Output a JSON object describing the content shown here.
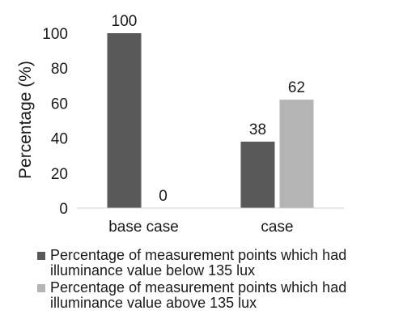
{
  "chart_data": {
    "type": "bar",
    "categories": [
      "base case",
      "case"
    ],
    "series": [
      {
        "name": "Percentage of measurement points which had illuminance value below 135 lux",
        "values": [
          100,
          38
        ],
        "color": "#595959"
      },
      {
        "name": "Percentage of measurement points which had illuminance value above 135 lux",
        "values": [
          0,
          62
        ],
        "color": "#b4b4b4"
      }
    ],
    "title": "",
    "xlabel": "",
    "ylabel": "Percentage (%)",
    "ylim": [
      0,
      100
    ],
    "yticks": [
      "0",
      "20",
      "40",
      "60",
      "80",
      "100"
    ],
    "grid": false,
    "legend_position": "bottom",
    "data_labels": true
  }
}
